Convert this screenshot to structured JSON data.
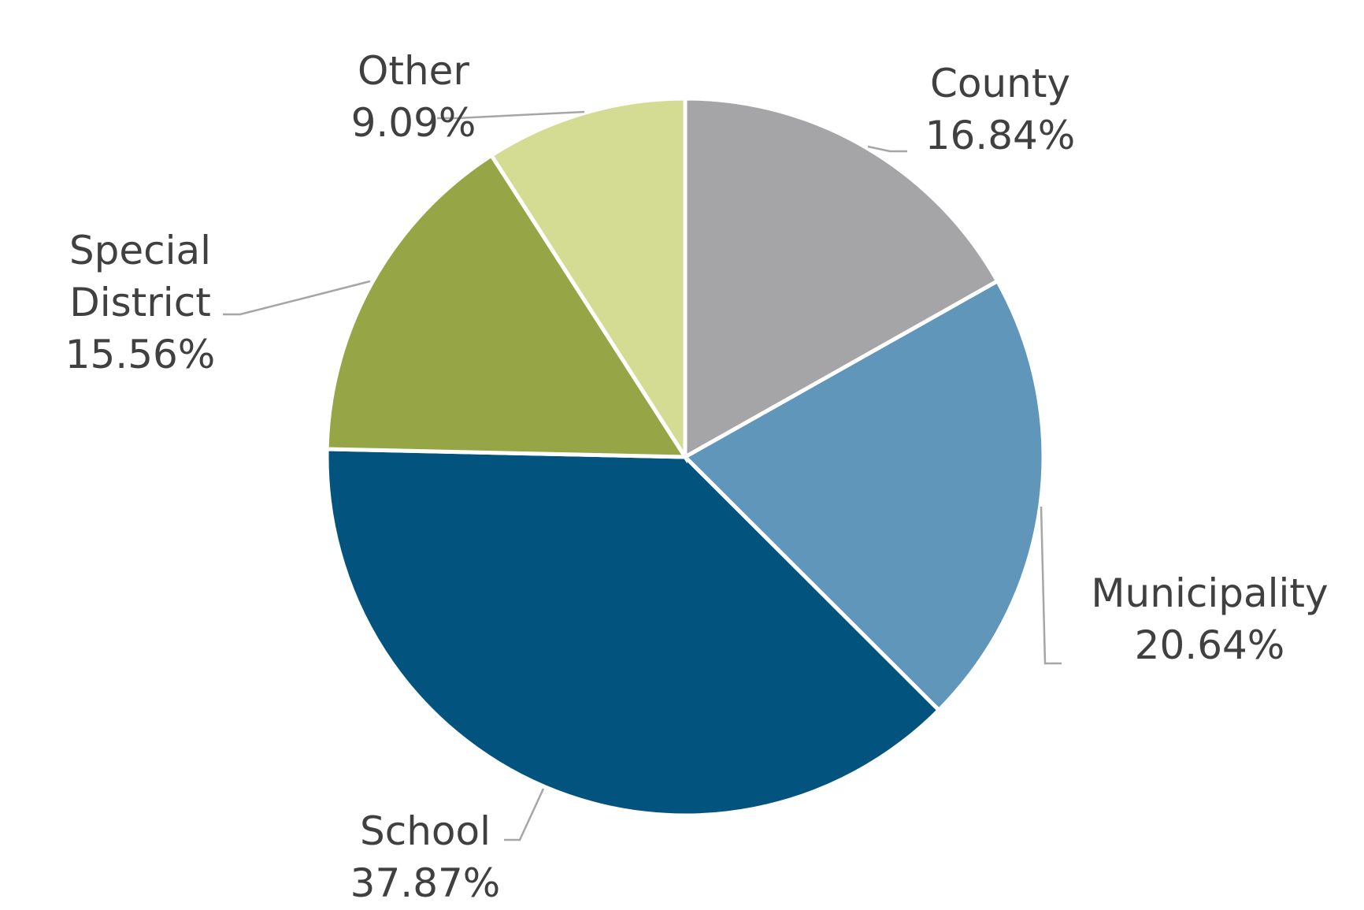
{
  "chart_data": {
    "type": "pie",
    "categories": [
      "County",
      "Municipality",
      "School",
      "Special District",
      "Other"
    ],
    "values": [
      16.84,
      20.64,
      37.87,
      15.56,
      9.09
    ],
    "unit": "%",
    "labels": [
      {
        "lines": [
          "County"
        ],
        "value": "16.84%"
      },
      {
        "lines": [
          "Municipality"
        ],
        "value": "20.64%"
      },
      {
        "lines": [
          "School"
        ],
        "value": "37.87%"
      },
      {
        "lines": [
          "Special",
          "District"
        ],
        "value": "15.56%"
      },
      {
        "lines": [
          "Other"
        ],
        "value": "9.09%"
      }
    ],
    "colors": [
      "#a5a5a7",
      "#6196bb",
      "#02547f",
      "#96a646",
      "#d4db93"
    ],
    "start_angle": "12 o'clock",
    "direction": "clockwise",
    "legend": "none",
    "data_labels": "outside with leader lines"
  }
}
